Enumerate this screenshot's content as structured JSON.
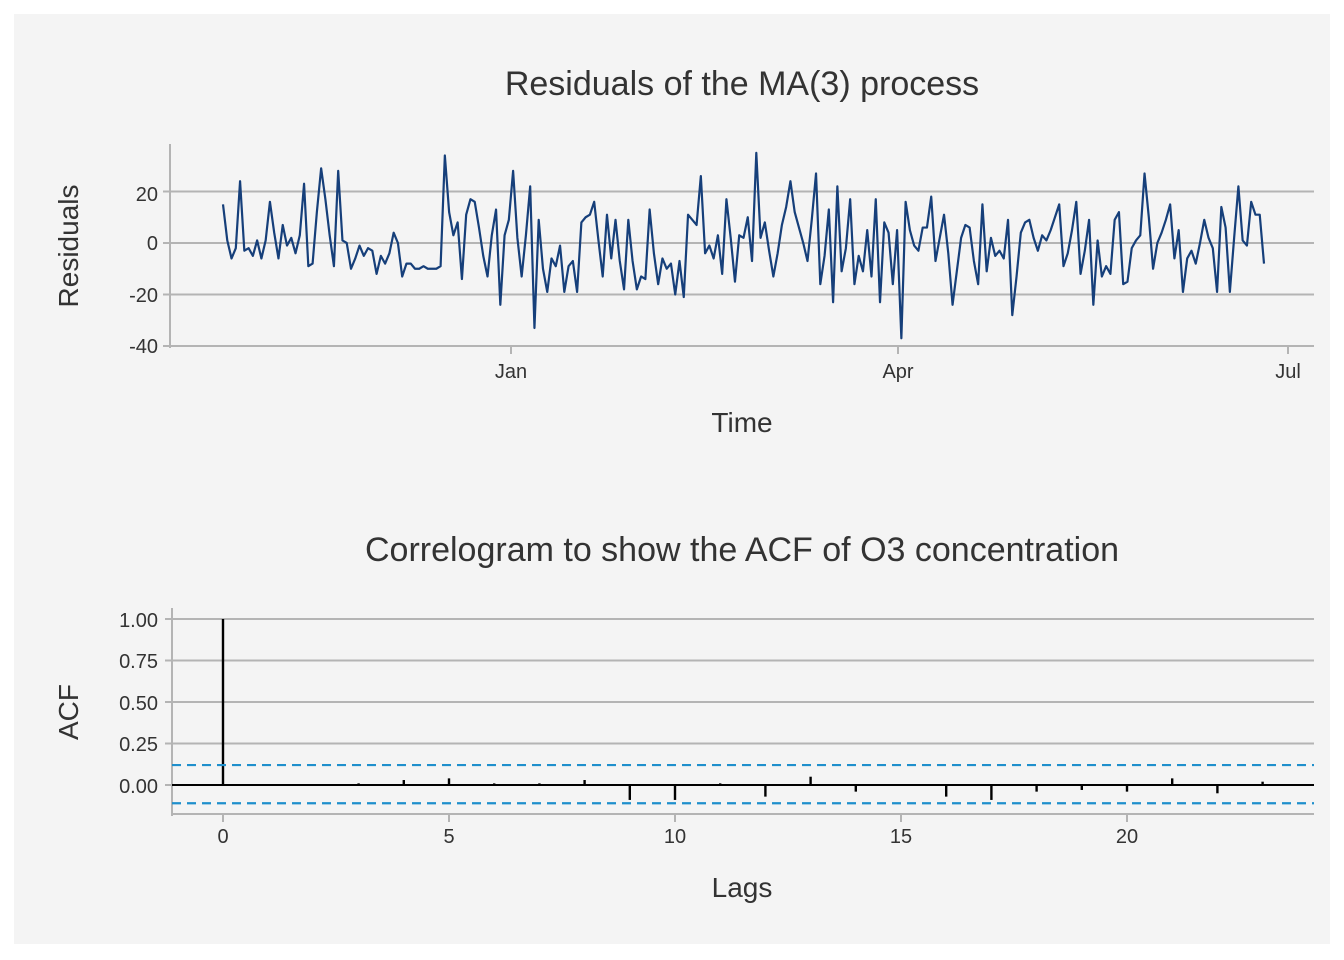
{
  "colors": {
    "background": "#f4f4f4",
    "grid": "#b4b4b4",
    "residual_line": "#163f7a",
    "acf_bar": "#000000",
    "confidence": "#1f8fcc"
  },
  "chart_data": [
    {
      "type": "line",
      "title": "Residuals of the MA(3) process",
      "xlabel": "Time",
      "ylabel": "Residuals",
      "x_ticks": [
        "Jan",
        "Apr",
        "Jul"
      ],
      "y_ticks": [
        "-40",
        "-20",
        "0",
        "20"
      ],
      "ylim": [
        -40,
        38
      ],
      "grid": "horizontal",
      "series": [
        {
          "values": [
            15,
            1,
            -6,
            -2,
            24,
            -3,
            -2,
            -5,
            1,
            -6,
            1,
            16,
            4,
            -6,
            7,
            -1,
            2,
            -4,
            3,
            23,
            -9,
            -8,
            12,
            29,
            17,
            3,
            -9,
            28,
            1,
            0,
            -10,
            -6,
            -1,
            -5,
            -2,
            -3,
            -12,
            -5,
            -8,
            -4,
            4,
            0,
            -13,
            -8,
            -8,
            -10,
            -10,
            -9,
            -10,
            -10,
            -10,
            -9,
            34,
            12,
            3,
            8,
            -14,
            11,
            17,
            16,
            6,
            -5,
            -13,
            3,
            13,
            -24,
            3,
            9,
            28,
            2,
            -13,
            3,
            22,
            -33,
            9,
            -10,
            -19,
            -6,
            -9,
            -1,
            -19,
            -9,
            -7,
            -19,
            8,
            10,
            11,
            16,
            1,
            -13,
            11,
            -6,
            9,
            -7,
            -18,
            9,
            -7,
            -18,
            -13,
            -14,
            13,
            -4,
            -16,
            -6,
            -10,
            -8,
            -20,
            -7,
            -21,
            11,
            9,
            7,
            26,
            -4,
            -1,
            -6,
            3,
            -12,
            17,
            2,
            -15,
            3,
            2,
            10,
            -7,
            35,
            2,
            8,
            -3,
            -13,
            -4,
            7,
            14,
            24,
            12,
            6,
            0,
            -7,
            9,
            27,
            -16,
            -5,
            13,
            -23,
            22,
            -11,
            -2,
            17,
            -16,
            -5,
            -11,
            5,
            -13,
            17,
            -23,
            8,
            4,
            -16,
            5,
            -37,
            16,
            5,
            -1,
            -3,
            6,
            6,
            18,
            -7,
            2,
            11,
            -4,
            -24,
            -11,
            2,
            7,
            6,
            -7,
            -16,
            15,
            -11,
            2,
            -5,
            -3,
            -6,
            9,
            -28,
            -13,
            4,
            8,
            9,
            2,
            -3,
            3,
            1,
            5,
            10,
            15,
            -9,
            -4,
            5,
            16,
            -12,
            -3,
            9,
            -24,
            1,
            -13,
            -9,
            -12,
            9,
            12,
            -16,
            -15,
            -2,
            1,
            3,
            27,
            10,
            -10,
            0,
            4,
            9,
            15,
            -6,
            5,
            -19,
            -6,
            -3,
            -8,
            0,
            9,
            2,
            -2,
            -19,
            14,
            6,
            -19,
            2,
            22,
            1,
            -1,
            16,
            11,
            11,
            -8
          ]
        }
      ]
    },
    {
      "type": "bar",
      "title": "Correlogram to show the ACF of O3 concentration",
      "xlabel": "Lags",
      "ylabel": "ACF",
      "x_ticks": [
        "0",
        "5",
        "10",
        "15",
        "20"
      ],
      "y_ticks": [
        "0.00",
        "0.25",
        "0.50",
        "0.75",
        "1.00"
      ],
      "xlim": [
        -1.1,
        24
      ],
      "ylim": [
        -0.12,
        1.03
      ],
      "grid": "horizontal",
      "confidence_bounds": [
        0.12,
        -0.11
      ],
      "lags": [
        0,
        1,
        2,
        3,
        4,
        5,
        6,
        7,
        8,
        9,
        10,
        11,
        12,
        13,
        14,
        15,
        16,
        17,
        18,
        19,
        20,
        21,
        22,
        23
      ],
      "values": [
        1.0,
        0.0,
        0.0,
        0.01,
        0.03,
        0.04,
        0.01,
        0.01,
        0.03,
        -0.09,
        -0.09,
        0.01,
        -0.07,
        0.05,
        -0.04,
        0.0,
        -0.07,
        -0.09,
        -0.04,
        -0.03,
        -0.04,
        0.04,
        -0.05,
        0.02
      ]
    }
  ]
}
